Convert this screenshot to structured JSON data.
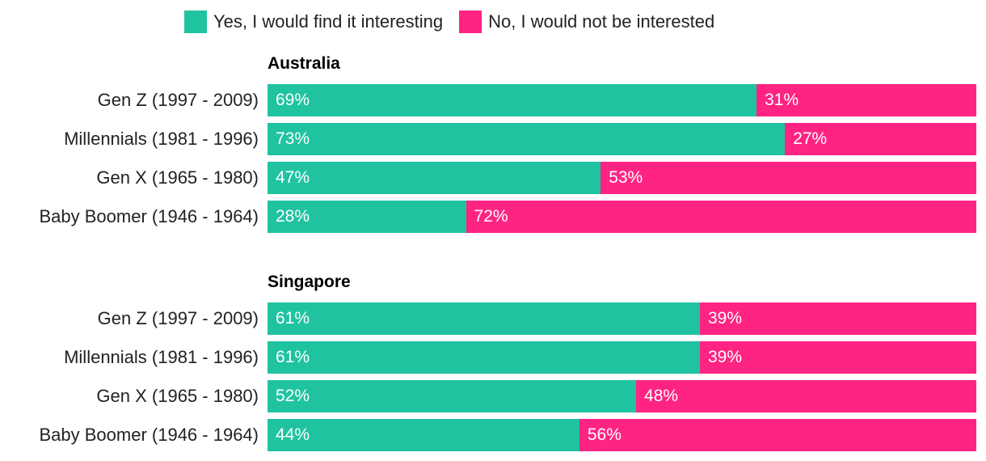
{
  "colors": {
    "yes": "#20c3a0",
    "no": "#ff2483"
  },
  "chart_data": {
    "type": "bar",
    "orientation": "horizontal",
    "stacked": true,
    "percent": true,
    "legend": {
      "position": "top",
      "entries": [
        "Yes, I would find it interesting",
        "No, I would not be interested"
      ]
    },
    "groups": [
      {
        "title": "Australia",
        "rows": [
          {
            "label": "Gen Z (1997 - 2009)",
            "yes": 69,
            "no": 31,
            "yes_text": "69%",
            "no_text": "31%"
          },
          {
            "label": "Millennials (1981 - 1996)",
            "yes": 73,
            "no": 27,
            "yes_text": "73%",
            "no_text": "27%"
          },
          {
            "label": "Gen X (1965 - 1980)",
            "yes": 47,
            "no": 53,
            "yes_text": "47%",
            "no_text": "53%"
          },
          {
            "label": "Baby Boomer (1946 - 1964)",
            "yes": 28,
            "no": 72,
            "yes_text": "28%",
            "no_text": "72%"
          }
        ]
      },
      {
        "title": "Singapore",
        "rows": [
          {
            "label": "Gen Z (1997 - 2009)",
            "yes": 61,
            "no": 39,
            "yes_text": "61%",
            "no_text": "39%"
          },
          {
            "label": "Millennials (1981 - 1996)",
            "yes": 61,
            "no": 39,
            "yes_text": "61%",
            "no_text": "39%"
          },
          {
            "label": "Gen X (1965 - 1980)",
            "yes": 52,
            "no": 48,
            "yes_text": "52%",
            "no_text": "48%"
          },
          {
            "label": "Baby Boomer (1946 - 1964)",
            "yes": 44,
            "no": 56,
            "yes_text": "44%",
            "no_text": "56%"
          }
        ]
      }
    ]
  }
}
